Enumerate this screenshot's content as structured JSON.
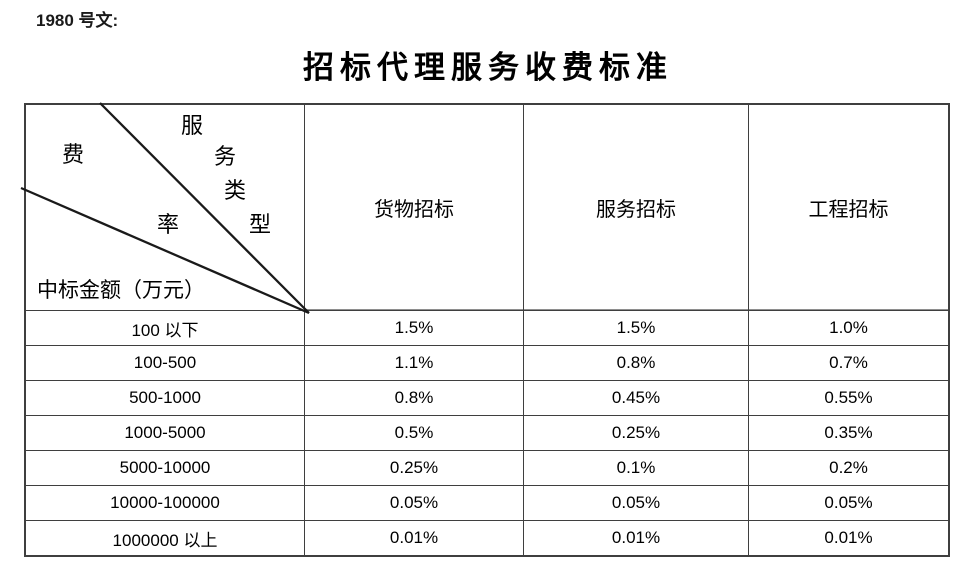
{
  "doc_label": "1980 号文:",
  "title": "招标代理服务收费标准",
  "table": {
    "corner": {
      "fee_rate_chars": [
        "费",
        "率"
      ],
      "service_type_chars": [
        "服",
        "务",
        "类",
        "型"
      ],
      "row_axis_label": "中标金额（万元）"
    },
    "columns": [
      "货物招标",
      "服务招标",
      "工程招标"
    ],
    "rows": [
      {
        "range": "100 以下",
        "values": [
          "1.5%",
          "1.5%",
          "1.0%"
        ]
      },
      {
        "range": "100-500",
        "values": [
          "1.1%",
          "0.8%",
          "0.7%"
        ]
      },
      {
        "range": "500-1000",
        "values": [
          "0.8%",
          "0.45%",
          "0.55%"
        ]
      },
      {
        "range": "1000-5000",
        "values": [
          "0.5%",
          "0.25%",
          "0.35%"
        ]
      },
      {
        "range": "5000-10000",
        "values": [
          "0.25%",
          "0.1%",
          "0.2%"
        ]
      },
      {
        "range": "10000-100000",
        "values": [
          "0.05%",
          "0.05%",
          "0.05%"
        ]
      },
      {
        "range": "1000000 以上",
        "values": [
          "0.01%",
          "0.01%",
          "0.01%"
        ]
      }
    ]
  },
  "colors": {
    "background": "#ffffff",
    "text": "#000000",
    "grid_line": "#3f3f3f",
    "header_separator": "#8e8e8e"
  }
}
